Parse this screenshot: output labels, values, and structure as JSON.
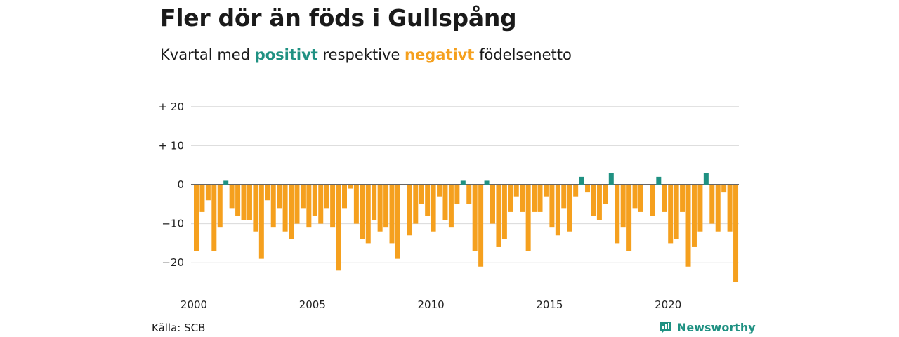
{
  "header": {
    "title": "Fler dör än föds i Gullspång",
    "subtitle_1": "Kvartal med ",
    "subtitle_pos": "positivt",
    "subtitle_2": " respektive ",
    "subtitle_neg": "negativt",
    "subtitle_3": " födelsenetto"
  },
  "footer": {
    "source": "Källa: SCB",
    "brand": "Newsworthy"
  },
  "colors": {
    "positive": "#1f9182",
    "negative": "#f5a01e",
    "grid": "#d9d9d9",
    "zero": "#333333"
  },
  "chart_data": {
    "type": "bar",
    "x_start": 2000,
    "periods_per_year": 4,
    "values": [
      -17,
      -7,
      -4,
      -17,
      -11,
      1,
      -6,
      -8,
      -9,
      -9,
      -12,
      -19,
      -4,
      -11,
      -6,
      -12,
      -14,
      -10,
      -6,
      -11,
      -8,
      -10,
      -6,
      -11,
      -22,
      -6,
      -1,
      -10,
      -14,
      -15,
      -9,
      -12,
      -11,
      -15,
      -19,
      0,
      -13,
      -10,
      -5,
      -8,
      -12,
      -3,
      -9,
      -11,
      -5,
      1,
      -5,
      -17,
      -21,
      1,
      -10,
      -16,
      -14,
      -7,
      -3,
      -7,
      -17,
      -7,
      -7,
      -3,
      -11,
      -13,
      -6,
      -12,
      -3,
      2,
      -2,
      -8,
      -9,
      -5,
      3,
      -15,
      -11,
      -17,
      -6,
      -7,
      0,
      -8,
      2,
      -7,
      -15,
      -14,
      -7,
      -21,
      -16,
      -12,
      3,
      -10,
      -12,
      -2,
      -12,
      -25
    ],
    "ylim": [
      -25,
      20
    ],
    "yticks": [
      20,
      10,
      0,
      -10,
      -20
    ],
    "ytick_labels": [
      "+ 20",
      "+ 10",
      "0",
      "−10",
      "−20"
    ],
    "xticks": [
      "2000",
      "2005",
      "2010",
      "2015",
      "2020"
    ],
    "grid": true
  }
}
